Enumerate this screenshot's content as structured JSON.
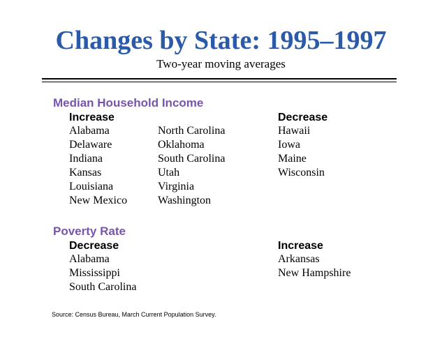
{
  "title": "Changes by State:  1995–1997",
  "subtitle": "Two-year moving averages",
  "income": {
    "heading": "Median Household Income",
    "increase_label": "Increase",
    "decrease_label": "Decrease",
    "increase_col1": [
      "Alabama",
      "Delaware",
      "Indiana",
      "Kansas",
      "Louisiana",
      "New Mexico"
    ],
    "increase_col2": [
      "North Carolina",
      "Oklahoma",
      "South Carolina",
      "Utah",
      "Virginia",
      "Washington"
    ],
    "decrease": [
      "Hawaii",
      "Iowa",
      "Maine",
      "Wisconsin"
    ]
  },
  "poverty": {
    "heading": "Poverty Rate",
    "decrease_label": "Decrease",
    "increase_label": "Increase",
    "decrease": [
      "Alabama",
      "Mississippi",
      "South Carolina"
    ],
    "increase": [
      "Arkansas",
      "New Hampshire"
    ]
  },
  "source": "Source:  Census Bureau, March Current Population Survey.",
  "colors": {
    "title": "#2a5aa8",
    "section": "#7755aa"
  }
}
